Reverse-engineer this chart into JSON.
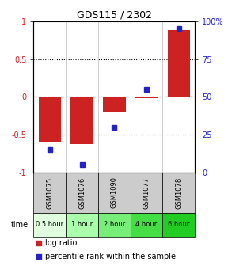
{
  "title": "GDS115 / 2302",
  "samples": [
    "GSM1075",
    "GSM1076",
    "GSM1090",
    "GSM1077",
    "GSM1078"
  ],
  "time_labels": [
    "0.5 hour",
    "1 hour",
    "2 hour",
    "4 hour",
    "6 hour"
  ],
  "log_ratios": [
    -0.6,
    -0.62,
    -0.2,
    -0.02,
    0.88
  ],
  "percentile_ranks": [
    15,
    5,
    30,
    55,
    95
  ],
  "bar_color": "#cc2222",
  "dot_color": "#2222cc",
  "ylim": [
    -1,
    1
  ],
  "yticks_left": [
    -0.5,
    0,
    0.5
  ],
  "ytick_labels_left": [
    "-0.5",
    "0",
    "0.5"
  ],
  "ytick_extremes_left": [
    -1,
    1
  ],
  "ytick_labels_extremes": [
    "-1",
    "1"
  ],
  "yticks_right": [
    0,
    25,
    50,
    75,
    100
  ],
  "ytick_labels_right": [
    "0",
    "25",
    "50",
    "75",
    "100%"
  ],
  "time_colors": [
    "#dfffdf",
    "#aaffaa",
    "#77ee77",
    "#44dd44",
    "#22cc22"
  ],
  "sample_bg_color": "#cccccc",
  "background_color": "#ffffff",
  "legend_log_ratio": "log ratio",
  "legend_percentile": "percentile rank within the sample"
}
